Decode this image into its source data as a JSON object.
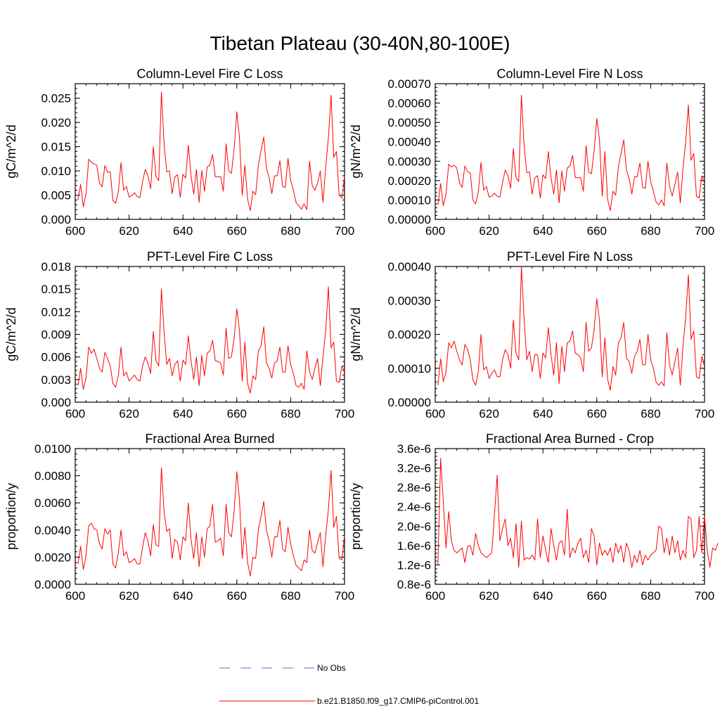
{
  "figure_title": "Tibetan Plateau (30-40N,80-100E)",
  "legend": [
    {
      "label": "No Obs",
      "color": "#5a6cd6",
      "style": "dashed"
    },
    {
      "label": "b.e21.B1850.f09_g17.CMIP6-piControl.001",
      "color": "#ff0000",
      "style": "solid"
    }
  ],
  "chart_data": [
    {
      "type": "line",
      "title": "Column-Level Fire C Loss",
      "ylabel": "gC/m^2/d",
      "xlim": [
        600,
        700
      ],
      "ylim": [
        0,
        0.028
      ],
      "xticks": [
        600,
        620,
        640,
        660,
        680,
        700
      ],
      "xtick_labels": [
        "600",
        "620",
        "640",
        "660",
        "680",
        "700"
      ],
      "yticks": [
        0,
        0.005,
        0.01,
        0.015,
        0.02,
        0.025
      ],
      "ytick_labels": [
        "0.000",
        "0.005",
        "0.010",
        "0.015",
        "0.020",
        "0.025"
      ],
      "series": [
        {
          "color": "#ff0000",
          "x_start": 601,
          "x_step": 1,
          "values": [
            0.004,
            0.0072,
            0.0026,
            0.0052,
            0.0124,
            0.0118,
            0.0114,
            0.0112,
            0.0075,
            0.0067,
            0.0111,
            0.0097,
            0.0098,
            0.0039,
            0.0033,
            0.0057,
            0.0117,
            0.006,
            0.0068,
            0.0046,
            0.0049,
            0.0055,
            0.0047,
            0.0045,
            0.0077,
            0.0103,
            0.009,
            0.0063,
            0.015,
            0.0088,
            0.008,
            0.0263,
            0.0155,
            0.0098,
            0.01,
            0.0053,
            0.0088,
            0.0092,
            0.0045,
            0.0093,
            0.0085,
            0.0153,
            0.009,
            0.0052,
            0.0103,
            0.0035,
            0.0101,
            0.0058,
            0.0108,
            0.0112,
            0.0134,
            0.0088,
            0.0088,
            0.0088,
            0.0058,
            0.0156,
            0.01,
            0.0095,
            0.0145,
            0.0222,
            0.0168,
            0.005,
            0.0112,
            0.0042,
            0.0018,
            0.0058,
            0.0051,
            0.0112,
            0.0142,
            0.017,
            0.0105,
            0.0086,
            0.0053,
            0.009,
            0.009,
            0.0121,
            0.0068,
            0.0066,
            0.0126,
            0.008,
            0.006,
            0.0035,
            0.0028,
            0.0021,
            0.0032,
            0.002,
            0.012,
            0.007,
            0.006,
            0.0075,
            0.01,
            0.0035,
            0.0107,
            0.0168,
            0.0256,
            0.0128,
            0.014,
            0.005,
            0.0044,
            0.0088
          ]
        }
      ]
    },
    {
      "type": "line",
      "title": "Column-Level Fire N Loss",
      "ylabel": "gN/m^2/d",
      "xlim": [
        600,
        700
      ],
      "ylim": [
        0,
        0.0007
      ],
      "xticks": [
        600,
        620,
        640,
        660,
        680,
        700
      ],
      "xtick_labels": [
        "600",
        "620",
        "640",
        "660",
        "680",
        "700"
      ],
      "yticks": [
        0,
        0.0001,
        0.0002,
        0.0003,
        0.0004,
        0.0005,
        0.0006,
        0.0007
      ],
      "ytick_labels": [
        "0.00000",
        "0.00010",
        "0.00020",
        "0.00030",
        "0.00040",
        "0.00050",
        "0.00060",
        "0.00070"
      ],
      "series": [
        {
          "color": "#ff0000",
          "x_start": 601,
          "x_step": 1,
          "values": [
            7.5e-05,
            0.000185,
            7e-05,
            0.00013,
            0.000285,
            0.00027,
            0.00028,
            0.000265,
            0.00019,
            0.000165,
            0.000275,
            0.000245,
            0.00024,
            0.0001,
            8e-05,
            0.00014,
            0.000295,
            0.00015,
            0.00017,
            0.000115,
            0.00012,
            0.000135,
            0.00012,
            0.000115,
            0.00019,
            0.000255,
            0.000225,
            0.00016,
            0.000365,
            0.000215,
            0.000195,
            0.00064,
            0.00038,
            0.00024,
            0.000245,
            0.00013,
            0.000215,
            0.000225,
            0.00011,
            0.00023,
            0.00021,
            0.00035,
            0.000215,
            0.00013,
            0.000255,
            8.5e-05,
            0.00025,
            0.000145,
            0.000265,
            0.000275,
            0.00033,
            0.000215,
            0.000215,
            0.000215,
            0.000145,
            0.00038,
            0.000245,
            0.000235,
            0.000355,
            0.00052,
            0.00041,
            0.00012,
            0.00035,
            0.000105,
            4.5e-05,
            0.000145,
            0.000125,
            0.00027,
            0.00034,
            0.00041,
            0.000255,
            0.00021,
            0.00013,
            0.00022,
            0.00022,
            0.00029,
            0.000165,
            0.00016,
            0.0003,
            0.000195,
            0.000145,
            9e-05,
            7.5e-05,
            0.0001,
            7e-05,
            0.00029,
            0.00017,
            0.00012,
            0.00018,
            0.000245,
            8.5e-05,
            0.00026,
            0.0004,
            0.00059,
            0.000305,
            0.00034,
            0.00012,
            0.00011,
            0.000225,
            0.000185
          ]
        }
      ]
    },
    {
      "type": "line",
      "title": "PFT-Level Fire C Loss",
      "ylabel": "gC/m^2/d",
      "xlim": [
        600,
        700
      ],
      "ylim": [
        0,
        0.018
      ],
      "xticks": [
        600,
        620,
        640,
        660,
        680,
        700
      ],
      "xtick_labels": [
        "600",
        "620",
        "640",
        "660",
        "680",
        "700"
      ],
      "yticks": [
        0,
        0.003,
        0.006,
        0.009,
        0.012,
        0.015,
        0.018
      ],
      "ytick_labels": [
        "0.000",
        "0.003",
        "0.006",
        "0.009",
        "0.012",
        "0.015",
        "0.018"
      ],
      "series": [
        {
          "color": "#ff0000",
          "x_start": 601,
          "x_step": 1,
          "values": [
            0.0022,
            0.0045,
            0.0017,
            0.0032,
            0.0073,
            0.0065,
            0.007,
            0.0058,
            0.0045,
            0.004,
            0.0066,
            0.0058,
            0.0048,
            0.0025,
            0.002,
            0.0035,
            0.0073,
            0.0035,
            0.004,
            0.0028,
            0.0032,
            0.0036,
            0.003,
            0.0028,
            0.0048,
            0.006,
            0.0052,
            0.0038,
            0.0094,
            0.0055,
            0.0048,
            0.015,
            0.0092,
            0.005,
            0.0058,
            0.0035,
            0.005,
            0.0055,
            0.0028,
            0.0056,
            0.005,
            0.0088,
            0.0055,
            0.003,
            0.006,
            0.0022,
            0.0062,
            0.0035,
            0.0065,
            0.0068,
            0.0082,
            0.0055,
            0.0054,
            0.0052,
            0.0036,
            0.0098,
            0.0058,
            0.006,
            0.0085,
            0.0124,
            0.0095,
            0.0028,
            0.008,
            0.0025,
            0.0012,
            0.0035,
            0.003,
            0.0068,
            0.0075,
            0.01,
            0.0052,
            0.0045,
            0.0032,
            0.0052,
            0.0055,
            0.0073,
            0.004,
            0.004,
            0.0075,
            0.005,
            0.0038,
            0.0022,
            0.002,
            0.0025,
            0.0017,
            0.0068,
            0.004,
            0.003,
            0.0045,
            0.0058,
            0.0022,
            0.006,
            0.0095,
            0.0153,
            0.0072,
            0.008,
            0.0028,
            0.0026,
            0.0048,
            0.004
          ]
        }
      ]
    },
    {
      "type": "line",
      "title": "PFT-Level Fire N Loss",
      "ylabel": "gN/m^2/d",
      "xlim": [
        600,
        700
      ],
      "ylim": [
        0,
        0.0004
      ],
      "xticks": [
        600,
        620,
        640,
        660,
        680,
        700
      ],
      "xtick_labels": [
        "600",
        "620",
        "640",
        "660",
        "680",
        "700"
      ],
      "yticks": [
        0,
        0.0001,
        0.0002,
        0.0003,
        0.0004
      ],
      "ytick_labels": [
        "0.00000",
        "0.00010",
        "0.00020",
        "0.00030",
        "0.00040"
      ],
      "series": [
        {
          "color": "#ff0000",
          "x_start": 601,
          "x_step": 1,
          "values": [
            5e-05,
            0.000128,
            6e-05,
            9e-05,
            0.000175,
            0.00016,
            0.00018,
            0.00015,
            0.000125,
            0.00011,
            0.00017,
            0.000155,
            0.000125,
            6.5e-05,
            5e-05,
            9e-05,
            0.0002,
            9.5e-05,
            0.000105,
            7e-05,
            8.5e-05,
            9.5e-05,
            7.5e-05,
            7.5e-05,
            0.000125,
            0.000155,
            0.00014,
            0.0001,
            0.000242,
            0.000145,
            0.000125,
            0.0004,
            0.000245,
            0.000125,
            0.00015,
            9e-05,
            0.00014,
            0.00014,
            7e-05,
            0.000145,
            0.00013,
            0.00022,
            0.00014,
            8e-05,
            0.000175,
            5.5e-05,
            0.000165,
            9e-05,
            0.000175,
            0.00018,
            0.00021,
            0.000145,
            0.00014,
            0.00013,
            9e-05,
            0.000235,
            0.00015,
            0.00016,
            0.000215,
            0.000305,
            0.00024,
            7.5e-05,
            0.00019,
            6.8e-05,
            3.5e-05,
            0.000105,
            8e-05,
            0.000175,
            0.00019,
            0.000235,
            0.00013,
            0.00012,
            8.5e-05,
            0.000135,
            0.00015,
            0.000185,
            0.00011,
            0.00011,
            0.0002,
            0.000125,
            0.0001,
            6e-05,
            5e-05,
            6e-05,
            4.8e-05,
            0.000205,
            0.00011,
            8e-05,
            0.00012,
            0.00016,
            5e-05,
            0.000165,
            0.00025,
            0.000375,
            0.000185,
            0.00021,
            7.5e-05,
            7e-05,
            0.000135,
            0.000105
          ]
        }
      ]
    },
    {
      "type": "line",
      "title": "Fractional Area Burned",
      "ylabel": "proportion/y",
      "xlim": [
        600,
        700
      ],
      "ylim": [
        0,
        0.01
      ],
      "xticks": [
        600,
        620,
        640,
        660,
        680,
        700
      ],
      "xtick_labels": [
        "600",
        "620",
        "640",
        "660",
        "680",
        "700"
      ],
      "yticks": [
        0,
        0.002,
        0.004,
        0.006,
        0.008,
        0.01
      ],
      "ytick_labels": [
        "0.0000",
        "0.0020",
        "0.0040",
        "0.0060",
        "0.0080",
        "0.0100"
      ],
      "series": [
        {
          "color": "#ff0000",
          "x_start": 601,
          "x_step": 1,
          "values": [
            0.0015,
            0.0028,
            0.0011,
            0.0021,
            0.0043,
            0.0045,
            0.0041,
            0.004,
            0.003,
            0.0026,
            0.0041,
            0.0037,
            0.004,
            0.0015,
            0.0012,
            0.0023,
            0.004,
            0.0021,
            0.0024,
            0.0016,
            0.0017,
            0.0019,
            0.0015,
            0.0015,
            0.0027,
            0.0038,
            0.0032,
            0.0021,
            0.0044,
            0.0029,
            0.0028,
            0.0086,
            0.0053,
            0.0039,
            0.0041,
            0.0019,
            0.0033,
            0.0031,
            0.0018,
            0.0035,
            0.0032,
            0.006,
            0.0033,
            0.0019,
            0.0038,
            0.0013,
            0.0035,
            0.002,
            0.0041,
            0.0043,
            0.0059,
            0.0031,
            0.0032,
            0.0034,
            0.0021,
            0.0059,
            0.0038,
            0.0035,
            0.0054,
            0.0083,
            0.0062,
            0.0019,
            0.0042,
            0.0016,
            0.0006,
            0.002,
            0.0019,
            0.004,
            0.005,
            0.0061,
            0.004,
            0.0032,
            0.002,
            0.0035,
            0.0035,
            0.0047,
            0.0026,
            0.0024,
            0.0042,
            0.003,
            0.0021,
            0.0014,
            0.0012,
            0.001,
            0.0018,
            0.0016,
            0.004,
            0.0025,
            0.0023,
            0.0031,
            0.0038,
            0.0013,
            0.0036,
            0.0055,
            0.0084,
            0.0042,
            0.005,
            0.0019,
            0.0018,
            0.0036
          ]
        }
      ]
    },
    {
      "type": "line",
      "title": "Fractional Area Burned - Crop",
      "ylabel": "proportion/y",
      "xlim": [
        600,
        700
      ],
      "ylim": [
        8e-07,
        3.6e-06
      ],
      "xticks": [
        600,
        620,
        640,
        660,
        680,
        700
      ],
      "xtick_labels": [
        "600",
        "620",
        "640",
        "660",
        "680",
        "700"
      ],
      "yticks": [
        8e-07,
        1.2e-06,
        1.6e-06,
        2e-06,
        2.4e-06,
        2.8e-06,
        3.2e-06,
        3.6e-06
      ],
      "ytick_labels": [
        "0.8e-6",
        "1.2e-6",
        "1.6e-6",
        "2.0e-6",
        "2.4e-6",
        "2.8e-6",
        "3.2e-6",
        "3.6e-6"
      ],
      "series": [
        {
          "color": "#ff0000",
          "x_start": 601,
          "x_step": 1,
          "values": [
            1.2e-06,
            3.4e-06,
            2.5e-06,
            1.55e-06,
            2.3e-06,
            1.7e-06,
            1.5e-06,
            1.45e-06,
            1.5e-06,
            1.55e-06,
            1.25e-06,
            1.58e-06,
            1.6e-06,
            1.4e-06,
            1.85e-06,
            1.6e-06,
            1.45e-06,
            1.4e-06,
            1.35e-06,
            1.4e-06,
            1.45e-06,
            2.25e-06,
            3.05e-06,
            1.7e-06,
            1.95e-06,
            2.15e-06,
            1.6e-06,
            1.75e-06,
            1.35e-06,
            2.05e-06,
            1.15e-06,
            2.1e-06,
            1.3e-06,
            1.35e-06,
            1.32e-06,
            1.4e-06,
            1.3e-06,
            2.15e-06,
            1.35e-06,
            1.8e-06,
            1.5e-06,
            1.25e-06,
            1.95e-06,
            1.6e-06,
            1.3e-06,
            1.65e-06,
            1.7e-06,
            1.4e-06,
            2.35e-06,
            1.35e-06,
            1.55e-06,
            1.45e-06,
            1.65e-06,
            1.75e-06,
            1.35e-06,
            1.5e-06,
            1.25e-06,
            1.95e-06,
            1.8e-06,
            1.2e-06,
            1.65e-06,
            1.4e-06,
            1.5e-06,
            1.4e-06,
            1.55e-06,
            1.25e-06,
            1.65e-06,
            1.45e-06,
            1.6e-06,
            1.25e-06,
            1.65e-06,
            1.5e-06,
            1.15e-06,
            1.4e-06,
            1.25e-06,
            1.5e-06,
            1.2e-06,
            1.4e-06,
            1.3e-06,
            1.4e-06,
            1.45e-06,
            1.5e-06,
            2e-06,
            1.95e-06,
            1.45e-06,
            1.75e-06,
            1.4e-06,
            1.8e-06,
            1.45e-06,
            1.7e-06,
            1.3e-06,
            1.5e-06,
            1.35e-06,
            2.2e-06,
            2.15e-06,
            1.35e-06,
            1.5e-06,
            2.2e-06,
            1.45e-06,
            2.2e-06,
            1.5e-06,
            1.15e-06,
            1.55e-06,
            1.5e-06,
            1.65e-06
          ]
        }
      ]
    }
  ]
}
